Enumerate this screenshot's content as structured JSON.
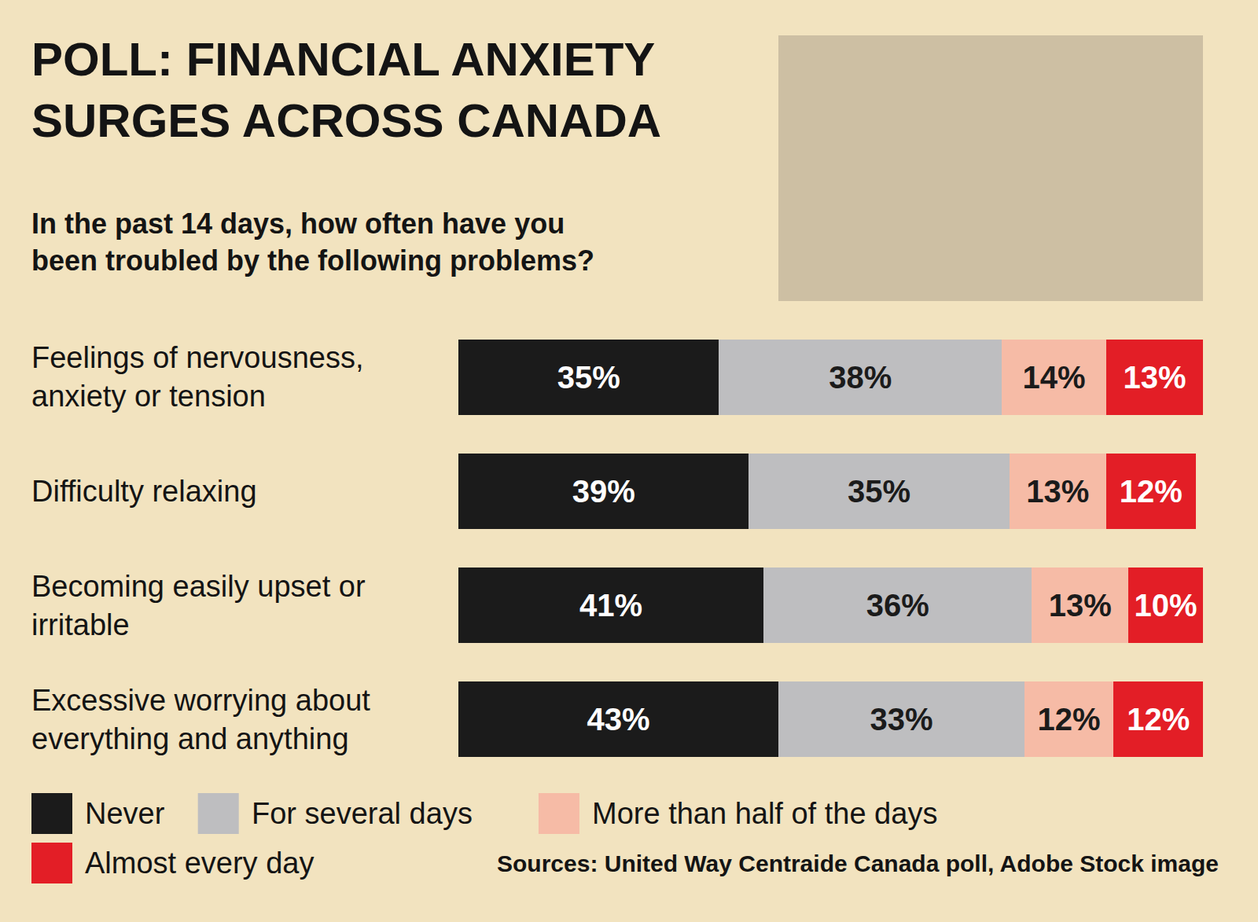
{
  "chart_data": {
    "type": "bar",
    "orientation": "horizontal",
    "stacked": true,
    "data_labels": true,
    "tick_labels": false,
    "grid": false,
    "legend": "bottom",
    "title": "POLL: FINANCIAL ANXIETY SURGES ACROSS CANADA",
    "subtitle": "In the past 14 days, how often have you been troubled by the following problems?",
    "annotations": [
      "Sources: United Way Centraide Canada poll, Adobe Stock image"
    ],
    "categories": [
      "Feelings of nervousness, anxiety or tension",
      "Difficulty relaxing",
      "Becoming easily upset or irritable",
      "Excessive worrying about everything and anything"
    ],
    "xlim": [
      0,
      100
    ],
    "series": [
      {
        "name": "Never",
        "color": "#1b1b1b",
        "values": [
          35,
          39,
          41,
          43
        ],
        "value_labels": [
          "35%",
          "39%",
          "41%",
          "43%"
        ]
      },
      {
        "name": "For several days",
        "color": "#bebec0",
        "values": [
          38,
          35,
          36,
          33
        ],
        "value_labels": [
          "38%",
          "35%",
          "36%",
          "33%"
        ]
      },
      {
        "name": "More than half of the days",
        "color": "#f6bba6",
        "values": [
          14,
          13,
          13,
          12
        ],
        "value_labels": [
          "14%",
          "13%",
          "13%",
          "12%"
        ]
      },
      {
        "name": "Almost every day",
        "color": "#e31e26",
        "values": [
          13,
          12,
          10,
          12
        ],
        "value_labels": [
          "13%",
          "12%",
          "10%",
          "12%"
        ]
      }
    ]
  }
}
